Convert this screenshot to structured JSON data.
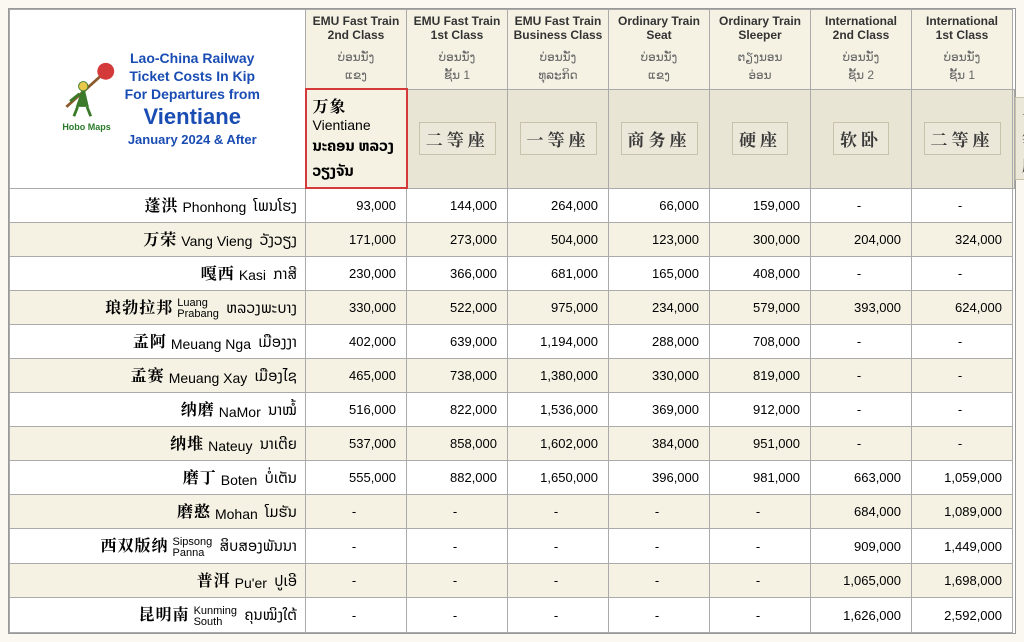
{
  "title": {
    "line1": "Lao-China Railway",
    "line2": "Ticket Costs In Kip",
    "line3": "For Departures from",
    "origin": "Vientiane",
    "dateline": "January 2024 & After",
    "logo_label": "Hobo Maps",
    "title_color": "#1a4db3"
  },
  "columns": [
    {
      "en1": "EMU Fast Train",
      "en2": "2nd Class",
      "lao1": "ບ່ອນນັ່ງ",
      "lao2": "ແຂງ",
      "cn": "二等座"
    },
    {
      "en1": "EMU Fast Train",
      "en2": "1st Class",
      "lao1": "ບ່ອນນັ່ງ",
      "lao2": "ຊັ້ນ 1",
      "cn": "一等座"
    },
    {
      "en1": "EMU Fast Train",
      "en2": "Business Class",
      "lao1": "ບ່ອນນັ່ງ",
      "lao2": "ທຸລະກິດ",
      "cn": "商务座"
    },
    {
      "en1": "Ordinary Train",
      "en2": "Seat",
      "lao1": "ບ່ອນນັ່ງ",
      "lao2": "ແຂງ",
      "cn": "硬座"
    },
    {
      "en1": "Ordinary Train",
      "en2": "Sleeper",
      "lao1": "ຕຽງນອນ",
      "lao2": "ອ່ອນ",
      "cn": "软卧"
    },
    {
      "en1": "International",
      "en2": "2nd Class",
      "lao1": "ບ່ອນນັ່ງ",
      "lao2": "ຊັ້ນ 2",
      "cn": "二等座"
    },
    {
      "en1": "International",
      "en2": "1st Class",
      "lao1": "ບ່ອນນັ່ງ",
      "lao2": "ຊັ້ນ 1",
      "cn": "一等座"
    }
  ],
  "origin_station": {
    "cn": "万象",
    "en": "Vientiane",
    "lao": "ນະຄອນ ຫລວງວຽງຈັນ"
  },
  "rows": [
    {
      "cn": "蓬洪",
      "en": "Phonhong",
      "lao": "ໂພນໂຮງ",
      "p": [
        "93,000",
        "144,000",
        "264,000",
        "66,000",
        "159,000",
        "-",
        "-"
      ]
    },
    {
      "cn": "万荣",
      "en": "Vang Vieng",
      "lao": "ວັງວຽງ",
      "p": [
        "171,000",
        "273,000",
        "504,000",
        "123,000",
        "300,000",
        "204,000",
        "324,000"
      ]
    },
    {
      "cn": "嘎西",
      "en": "Kasi",
      "lao": "ກາສີ",
      "p": [
        "230,000",
        "366,000",
        "681,000",
        "165,000",
        "408,000",
        "-",
        "-"
      ]
    },
    {
      "cn": "琅勃拉邦",
      "en": "Luang\nPrabang",
      "lao": "ຫລວງພະບາງ",
      "p": [
        "330,000",
        "522,000",
        "975,000",
        "234,000",
        "579,000",
        "393,000",
        "624,000"
      ]
    },
    {
      "cn": "孟阿",
      "en": "Meuang Nga",
      "lao": "ເມືອງງາ",
      "p": [
        "402,000",
        "639,000",
        "1,194,000",
        "288,000",
        "708,000",
        "-",
        "-"
      ]
    },
    {
      "cn": "孟赛",
      "en": "Meuang Xay",
      "lao": "ເມືອງໄຊ",
      "p": [
        "465,000",
        "738,000",
        "1,380,000",
        "330,000",
        "819,000",
        "-",
        "-"
      ]
    },
    {
      "cn": "纳磨",
      "en": "NaMor",
      "lao": "ນາໝໍ້",
      "p": [
        "516,000",
        "822,000",
        "1,536,000",
        "369,000",
        "912,000",
        "-",
        "-"
      ]
    },
    {
      "cn": "纳堆",
      "en": "Nateuy",
      "lao": "ນາເຕີຍ",
      "p": [
        "537,000",
        "858,000",
        "1,602,000",
        "384,000",
        "951,000",
        "-",
        "-"
      ]
    },
    {
      "cn": "磨丁",
      "en": "Boten",
      "lao": "ບໍ່ເຕັນ",
      "p": [
        "555,000",
        "882,000",
        "1,650,000",
        "396,000",
        "981,000",
        "663,000",
        "1,059,000"
      ]
    },
    {
      "cn": "磨憨",
      "en": "Mohan",
      "lao": "ໂມຮັນ",
      "p": [
        "-",
        "-",
        "-",
        "-",
        "-",
        "684,000",
        "1,089,000"
      ]
    },
    {
      "cn": "西双版纳",
      "en": "Sipsong\nPanna",
      "lao": "ສິບສອງພັນນາ",
      "p": [
        "-",
        "-",
        "-",
        "-",
        "-",
        "909,000",
        "1,449,000"
      ]
    },
    {
      "cn": "普洱",
      "en": "Pu'er",
      "lao": "ປູເອີ",
      "p": [
        "-",
        "-",
        "-",
        "-",
        "-",
        "1,065,000",
        "1,698,000"
      ]
    },
    {
      "cn": "昆明南",
      "en": "Kunming\nSouth",
      "lao": "ຄຸນໝິງໃຕ້",
      "p": [
        "-",
        "-",
        "-",
        "-",
        "-",
        "1,626,000",
        "2,592,000"
      ]
    }
  ],
  "colors": {
    "header_bg": "#f5f2e4",
    "alt_row_bg": "#f5f2e4",
    "border": "#aaaaaa",
    "origin_border": "#d43a3a",
    "title": "#1a4db3",
    "logo_green": "#2a7a2a",
    "logo_red": "#d43a3a",
    "logo_yellow": "#e8c84a"
  }
}
